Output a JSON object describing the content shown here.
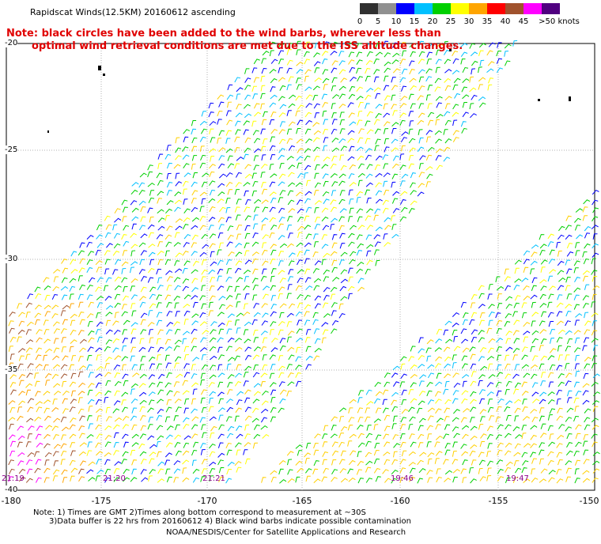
{
  "title": "Rapidscat Winds(12.5KM) 20160612 ascending",
  "note_line1": "Note: black circles have been added to the wind barbs, wherever less than",
  "note_line2": "optimal wind retrieval conditions are met due to the ISS altitude changes.",
  "scale": {
    "labels": [
      "0",
      "5",
      "10",
      "15",
      "20",
      "25",
      "30",
      "35",
      "40",
      "45",
      ">50 knots"
    ],
    "colors": [
      "#303030",
      "#909090",
      "#0000ff",
      "#00c0ff",
      "#00d000",
      "#ffff00",
      "#ffa500",
      "#ff0000",
      "#a0522d",
      "#ff00ff",
      "#500080"
    ]
  },
  "latitudes": [
    "-20",
    "-25",
    "-30",
    "-35",
    "-40"
  ],
  "longitudes": [
    "-180",
    "-175",
    "-170",
    "-165",
    "-160",
    "-155",
    "-150"
  ],
  "times": [
    "21:19",
    "21:20",
    "21:21",
    "19:46",
    "19:47"
  ],
  "footnote_line1": "Note: 1) Times are GMT 2)Times along bottom correspond to measurement at ~30S",
  "footnote_line2": "3)Data buffer is 22 hrs from 20160612 4) Black wind barbs indicate possible contamination",
  "credit": "NOAA/NESDIS/Center for Satellite Applications and Research",
  "colors": {
    "note": "#e00000",
    "time_label": "#8b008b",
    "grid": "#b0b0b0"
  }
}
